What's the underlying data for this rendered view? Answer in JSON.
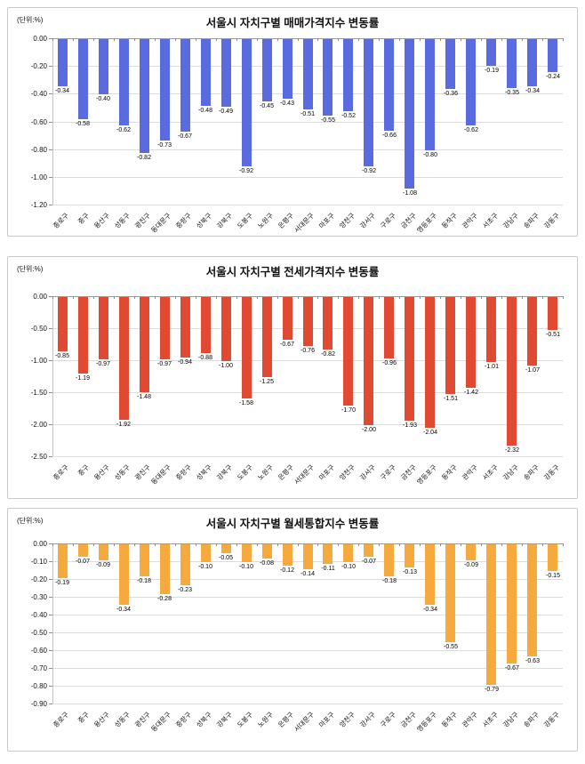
{
  "chart_data": [
    {
      "type": "bar",
      "title": "서울시 자치구별 매매가격지수 변동률",
      "unit_label": "(단위:%)",
      "bar_color": "#5a6be0",
      "grid": true,
      "legend": "none",
      "ylim": [
        0,
        -1.2
      ],
      "yticks": [
        0,
        -0.2,
        -0.4,
        -0.6,
        -0.8,
        -1.0,
        -1.2
      ],
      "categories": [
        "종로구",
        "중구",
        "용산구",
        "성동구",
        "광진구",
        "동대문구",
        "중랑구",
        "성북구",
        "강북구",
        "도봉구",
        "노원구",
        "은평구",
        "서대문구",
        "마포구",
        "양천구",
        "강서구",
        "구로구",
        "금천구",
        "영등포구",
        "동작구",
        "관악구",
        "서초구",
        "강남구",
        "송파구",
        "강동구"
      ],
      "values": [
        -0.34,
        -0.58,
        -0.4,
        -0.62,
        -0.82,
        -0.73,
        -0.67,
        -0.48,
        -0.49,
        -0.92,
        -0.45,
        -0.43,
        -0.51,
        -0.55,
        -0.52,
        -0.92,
        -0.66,
        -1.08,
        -0.8,
        -0.36,
        -0.62,
        -0.19,
        -0.35,
        -0.34,
        -0.24
      ]
    },
    {
      "type": "bar",
      "title": "서울시 자치구별 전세가격지수 변동률",
      "unit_label": "(단위:%)",
      "bar_color": "#e04a32",
      "grid": true,
      "legend": "none",
      "ylim": [
        0,
        -2.5
      ],
      "yticks": [
        0,
        -0.5,
        -1.0,
        -1.5,
        -2.0,
        -2.5
      ],
      "categories": [
        "종로구",
        "중구",
        "용산구",
        "성동구",
        "광진구",
        "동대문구",
        "중랑구",
        "성북구",
        "강북구",
        "도봉구",
        "노원구",
        "은평구",
        "서대문구",
        "마포구",
        "양천구",
        "강서구",
        "구로구",
        "금천구",
        "영등포구",
        "동작구",
        "관악구",
        "서초구",
        "강남구",
        "송파구",
        "강동구"
      ],
      "values": [
        -0.85,
        -1.19,
        -0.97,
        -1.92,
        -1.48,
        -0.97,
        -0.94,
        -0.88,
        -1.0,
        -1.58,
        -1.25,
        -0.67,
        -0.76,
        -0.82,
        -1.7,
        -2.0,
        -0.96,
        -1.93,
        -2.04,
        -1.51,
        -1.42,
        -1.01,
        -2.32,
        -1.07,
        -0.51
      ]
    },
    {
      "type": "bar",
      "title": "서울시 자치구별 월세통합지수 변동률",
      "unit_label": "(단위:%)",
      "bar_color": "#f6a93d",
      "grid": true,
      "legend": "none",
      "ylim": [
        0,
        -0.9
      ],
      "yticks": [
        0,
        -0.1,
        -0.2,
        -0.3,
        -0.4,
        -0.5,
        -0.6,
        -0.7,
        -0.8,
        -0.9
      ],
      "categories": [
        "종로구",
        "중구",
        "용산구",
        "성동구",
        "광진구",
        "동대문구",
        "중랑구",
        "성북구",
        "강북구",
        "도봉구",
        "노원구",
        "은평구",
        "서대문구",
        "마포구",
        "양천구",
        "강서구",
        "구로구",
        "금천구",
        "영등포구",
        "동작구",
        "관악구",
        "서초구",
        "강남구",
        "송파구",
        "강동구"
      ],
      "values": [
        -0.19,
        -0.07,
        -0.09,
        -0.34,
        -0.18,
        -0.28,
        -0.23,
        -0.1,
        -0.05,
        -0.1,
        -0.08,
        -0.12,
        -0.14,
        -0.11,
        -0.1,
        -0.07,
        -0.18,
        -0.13,
        -0.34,
        -0.55,
        -0.09,
        -0.79,
        -0.67,
        -0.63,
        -0.15
      ]
    }
  ]
}
